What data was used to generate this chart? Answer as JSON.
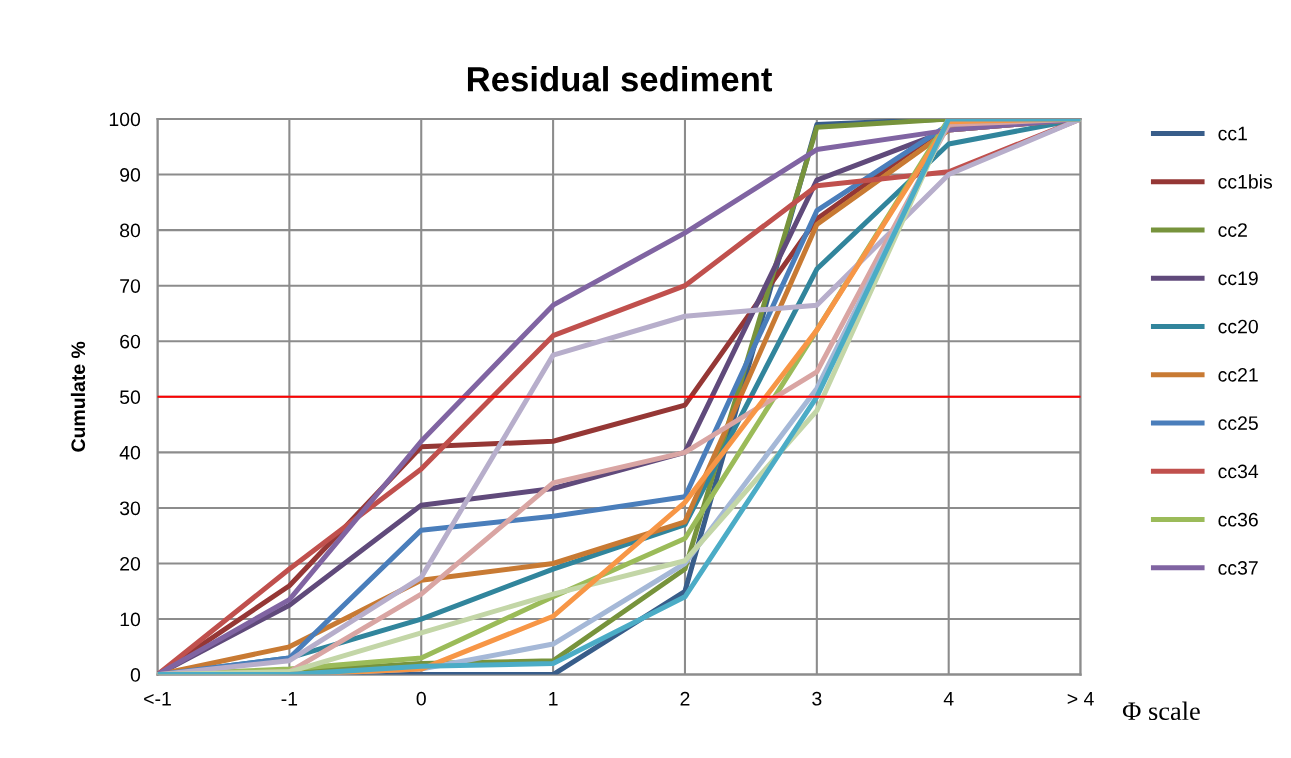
{
  "chart_data": {
    "type": "line",
    "title": "Residual sediment",
    "xlabel": "Φ scale",
    "ylabel": "Cumulate %",
    "categories": [
      "<-1",
      "-1",
      "0",
      "1",
      "2",
      "3",
      "4",
      "> 4"
    ],
    "ylim": [
      0,
      100
    ],
    "yticks": [
      0,
      10,
      20,
      30,
      40,
      50,
      60,
      70,
      80,
      90,
      100
    ],
    "grid": true,
    "legend": "right",
    "marker": "none",
    "line_style": "solid",
    "ref_lines": [
      {
        "axis": "y",
        "value": 50,
        "color": "#ff0000"
      }
    ],
    "series": [
      {
        "name": "cc1",
        "color": "#385d8a",
        "values": [
          0,
          0,
          0,
          0,
          15,
          99,
          100,
          100
        ]
      },
      {
        "name": "cc1bis",
        "color": "#953735",
        "values": [
          0,
          16,
          41,
          42,
          48.5,
          82,
          99,
          100
        ]
      },
      {
        "name": "cc2",
        "color": "#77933c",
        "values": [
          0,
          0.5,
          2,
          2.5,
          19,
          98.5,
          100,
          100
        ]
      },
      {
        "name": "cc19",
        "color": "#604a7b",
        "values": [
          0,
          12.5,
          30.5,
          33.5,
          40,
          89,
          98,
          100
        ]
      },
      {
        "name": "cc20",
        "color": "#31859c",
        "values": [
          0,
          3,
          10,
          19,
          27,
          73,
          95.5,
          100
        ]
      },
      {
        "name": "cc21",
        "color": "#c87a33",
        "values": [
          0,
          5,
          17,
          20,
          27.5,
          81,
          98,
          100
        ]
      },
      {
        "name": "cc25",
        "color": "#4a7ebb",
        "values": [
          0,
          3,
          26,
          28.5,
          32,
          83.5,
          99,
          100
        ]
      },
      {
        "name": "cc34",
        "color": "#c0504d",
        "values": [
          0,
          19,
          37,
          61,
          70,
          88,
          90.5,
          100
        ]
      },
      {
        "name": "cc36",
        "color": "#9bbb59",
        "values": [
          0,
          1,
          3,
          14,
          24.5,
          62,
          100,
          100
        ]
      },
      {
        "name": "cc37",
        "color": "#8064a2",
        "values": [
          0,
          13.5,
          42,
          66.5,
          79.5,
          94.5,
          98,
          100
        ]
      },
      {
        "color": "#b7aecb",
        "values": [
          0,
          2.5,
          17.5,
          57.5,
          64.5,
          66.5,
          90,
          100
        ]
      },
      {
        "color": "#d9a5a3",
        "values": [
          0,
          0.5,
          14.5,
          34.5,
          40,
          54.5,
          99,
          100
        ]
      },
      {
        "color": "#a5b8d7",
        "values": [
          0,
          0,
          1,
          5.5,
          20,
          51.5,
          99.5,
          100
        ]
      },
      {
        "color": "#c3d6a7",
        "values": [
          0,
          0.5,
          7.5,
          14.5,
          20.5,
          47.5,
          100,
          100
        ]
      },
      {
        "color": "#f79646",
        "values": [
          0,
          0,
          1,
          10.5,
          31,
          62,
          99.5,
          100
        ]
      },
      {
        "color": "#4bacc6",
        "values": [
          0,
          0,
          1.5,
          2,
          14,
          50,
          100,
          100
        ]
      }
    ]
  }
}
